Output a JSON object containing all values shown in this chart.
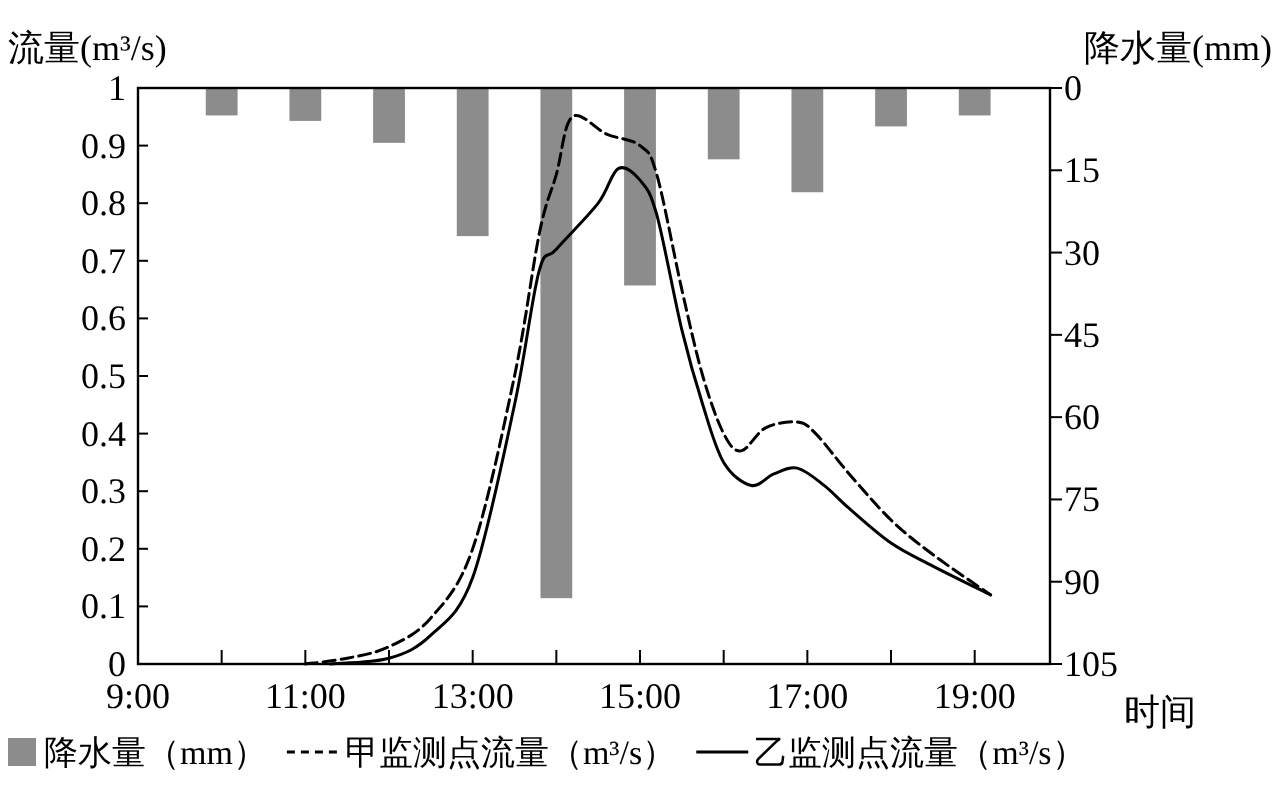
{
  "chart_data": {
    "type": "line",
    "ylabel": "流量(m³/s)",
    "y2label": "降水量(mm)",
    "xlabel": "时间",
    "xlim": [
      9,
      19.9
    ],
    "xticks": [
      {
        "value": 9,
        "label": "9:00"
      },
      {
        "value": 10,
        "label": null
      },
      {
        "value": 11,
        "label": "11:00"
      },
      {
        "value": 12,
        "label": null
      },
      {
        "value": 13,
        "label": "13:00"
      },
      {
        "value": 14,
        "label": null
      },
      {
        "value": 15,
        "label": "15:00"
      },
      {
        "value": 16,
        "label": null
      },
      {
        "value": 17,
        "label": "17:00"
      },
      {
        "value": 18,
        "label": null
      },
      {
        "value": 19,
        "label": "19:00"
      }
    ],
    "ylim": [
      0,
      1
    ],
    "yticks": [
      0,
      0.1,
      0.2,
      0.3,
      0.4,
      0.5,
      0.6,
      0.7,
      0.8,
      0.9,
      1
    ],
    "y2lim": [
      105,
      0
    ],
    "y2ticks": [
      0,
      15,
      30,
      45,
      60,
      75,
      90,
      105
    ],
    "grid": false,
    "legend": "bottom",
    "series": [
      {
        "name": "降水量（mm）",
        "type": "bar",
        "axis": "y2",
        "color": "#8c8c8c",
        "x": [
          10,
          11,
          12,
          13,
          14,
          15,
          16,
          17,
          18,
          19
        ],
        "values": [
          5,
          6,
          10,
          27,
          93,
          36,
          13,
          19,
          7,
          5
        ]
      },
      {
        "name": "甲监测点流量（m³/s）",
        "line_style": "dashed",
        "color": "#000000",
        "x": [
          11,
          11.5,
          12,
          12.5,
          13,
          13.5,
          13.8,
          14,
          14.19,
          14.6,
          15,
          15.2,
          15.5,
          15.75,
          16,
          16.21,
          16.5,
          16.88,
          17.1,
          17.5,
          18,
          18.5,
          19.19
        ],
        "values": [
          0,
          0.01,
          0.03,
          0.08,
          0.2,
          0.5,
          0.75,
          0.85,
          0.95,
          0.92,
          0.9,
          0.85,
          0.65,
          0.5,
          0.4,
          0.37,
          0.41,
          0.42,
          0.4,
          0.33,
          0.25,
          0.19,
          0.12
        ]
      },
      {
        "name": "乙监测点流量（m³/s）",
        "line_style": "solid",
        "color": "#000000",
        "x": [
          11.3,
          12,
          12.5,
          13,
          13.5,
          13.79,
          14,
          14.5,
          14.74,
          15,
          15.2,
          15.5,
          15.75,
          16,
          16.33,
          16.6,
          16.88,
          17.2,
          17.5,
          18,
          18.5,
          19.19
        ],
        "values": [
          0,
          0.01,
          0.05,
          0.15,
          0.45,
          0.68,
          0.72,
          0.8,
          0.86,
          0.84,
          0.78,
          0.58,
          0.45,
          0.35,
          0.31,
          0.33,
          0.34,
          0.31,
          0.27,
          0.21,
          0.17,
          0.12
        ]
      }
    ]
  }
}
